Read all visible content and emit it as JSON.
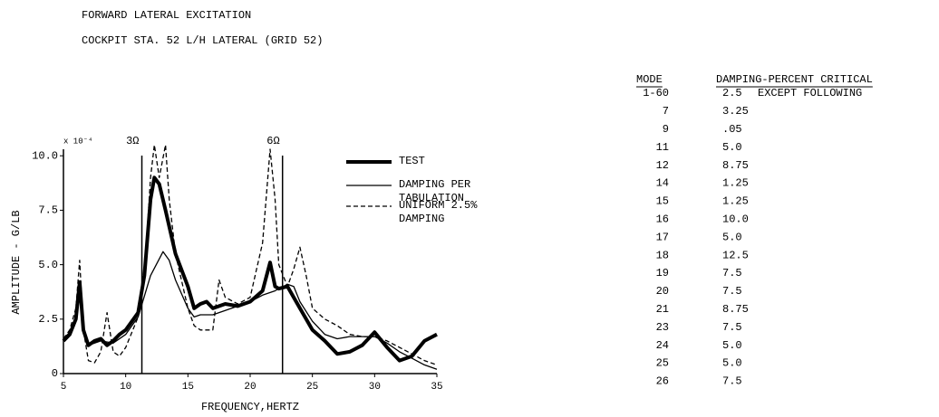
{
  "header": {
    "title": "FORWARD LATERAL EXCITATION",
    "subtitle": "COCKPIT STA. 52 L/H LATERAL (GRID 52)"
  },
  "chart_data": {
    "type": "line",
    "xlabel": "FREQUENCY,HERTZ",
    "ylabel": "AMPLITUDE - G/LB",
    "yunit": "x 10⁻⁴",
    "xlim": [
      5,
      35
    ],
    "ylim": [
      0,
      10.3
    ],
    "xticks": [
      5,
      10,
      15,
      20,
      25,
      30,
      35
    ],
    "yticks": [
      0,
      {
        "value": 2.5,
        "label": "2.5"
      },
      {
        "value": 5,
        "label": "5.0"
      },
      7.5,
      {
        "value": 10,
        "label": "10.0"
      }
    ],
    "grid": false,
    "annotations": [
      {
        "text": "3Ω",
        "x": 11.3
      },
      {
        "text": "6Ω",
        "x": 22.6
      }
    ],
    "series": [
      {
        "name": "TEST",
        "color": "#000",
        "width": 4,
        "dash": "none",
        "x": [
          5,
          5.5,
          6,
          6.3,
          6.6,
          7,
          7.5,
          8,
          8.5,
          9,
          9.5,
          10,
          11,
          11.5,
          12,
          12.3,
          12.7,
          13.2,
          14,
          15,
          15.5,
          16,
          16.5,
          17,
          18,
          19,
          20,
          21,
          21.6,
          22,
          22.3,
          23,
          24,
          25,
          26,
          27,
          28,
          29,
          30,
          31,
          32,
          33,
          34,
          35
        ],
        "values": [
          1.5,
          1.8,
          2.5,
          4.2,
          2.0,
          1.3,
          1.5,
          1.6,
          1.3,
          1.5,
          1.8,
          2.0,
          2.8,
          4.5,
          8.0,
          9.0,
          8.7,
          7.5,
          5.5,
          4.0,
          3.0,
          3.2,
          3.3,
          3.0,
          3.2,
          3.1,
          3.3,
          3.8,
          5.1,
          4.0,
          3.9,
          4.0,
          3.0,
          2.0,
          1.5,
          0.9,
          1.0,
          1.3,
          1.9,
          1.2,
          0.6,
          0.8,
          1.5,
          1.8
        ]
      },
      {
        "name": "DAMPING PER TABULATION",
        "color": "#000",
        "width": 1.3,
        "dash": "none",
        "x": [
          5,
          5.5,
          6,
          6.3,
          6.6,
          7,
          8,
          9,
          10,
          11,
          12,
          13,
          13.5,
          14,
          15,
          15.5,
          16,
          17,
          18,
          19,
          20,
          21,
          22,
          22.3,
          23,
          23.5,
          24,
          25,
          26,
          27,
          28,
          29,
          30,
          31,
          32,
          33,
          34,
          35
        ],
        "values": [
          1.6,
          1.9,
          2.5,
          3.8,
          2.0,
          1.3,
          1.5,
          1.4,
          1.8,
          2.6,
          4.5,
          5.6,
          5.2,
          4.3,
          3.0,
          2.6,
          2.7,
          2.7,
          2.9,
          3.1,
          3.3,
          3.6,
          3.8,
          3.9,
          4.1,
          4.0,
          3.3,
          2.4,
          1.8,
          1.6,
          1.7,
          1.7,
          1.7,
          1.4,
          1.0,
          0.7,
          0.4,
          0.2
        ]
      },
      {
        "name": "UNIFORM 2.5% DAMPING",
        "color": "#000",
        "width": 1.3,
        "dash": "5 3",
        "x": [
          5,
          5.5,
          6,
          6.3,
          6.6,
          7,
          7.5,
          8,
          8.5,
          9,
          9.5,
          10,
          11,
          11.5,
          12,
          12.3,
          12.7,
          13.2,
          13.5,
          14,
          15,
          15.5,
          16,
          17,
          17.5,
          18,
          19,
          20,
          21,
          21.6,
          22,
          22.3,
          23,
          23.5,
          24,
          24.5,
          25,
          26,
          27,
          28,
          29,
          30,
          31,
          32,
          33,
          34,
          35
        ],
        "values": [
          1.6,
          2.0,
          3.0,
          5.2,
          2.0,
          0.6,
          0.5,
          1.0,
          2.8,
          1.0,
          0.8,
          1.2,
          2.6,
          4.5,
          9.0,
          10.5,
          9.0,
          10.5,
          8.0,
          5.5,
          3.0,
          2.2,
          2.0,
          2.0,
          4.3,
          3.5,
          3.2,
          3.5,
          6.0,
          10.3,
          8.0,
          5.0,
          4.0,
          4.8,
          5.8,
          4.5,
          3.0,
          2.5,
          2.2,
          1.8,
          1.7,
          1.7,
          1.5,
          1.2,
          0.9,
          0.6,
          0.4
        ]
      }
    ]
  },
  "table": {
    "headers": [
      "MODE",
      "DAMPING-PERCENT CRITICAL"
    ],
    "rows": [
      [
        "1-60",
        "2.5",
        "EXCEPT FOLLOWING"
      ],
      [
        "7",
        "3.25"
      ],
      [
        "9",
        ".05"
      ],
      [
        "11",
        "5.0"
      ],
      [
        "12",
        "8.75"
      ],
      [
        "14",
        "1.25"
      ],
      [
        "15",
        "1.25"
      ],
      [
        "16",
        "10.0"
      ],
      [
        "17",
        "5.0"
      ],
      [
        "18",
        "12.5"
      ],
      [
        "19",
        "7.5"
      ],
      [
        "20",
        "7.5"
      ],
      [
        "21",
        "8.75"
      ],
      [
        "23",
        "7.5"
      ],
      [
        "24",
        "5.0"
      ],
      [
        "25",
        "5.0"
      ],
      [
        "26",
        "7.5"
      ]
    ]
  }
}
